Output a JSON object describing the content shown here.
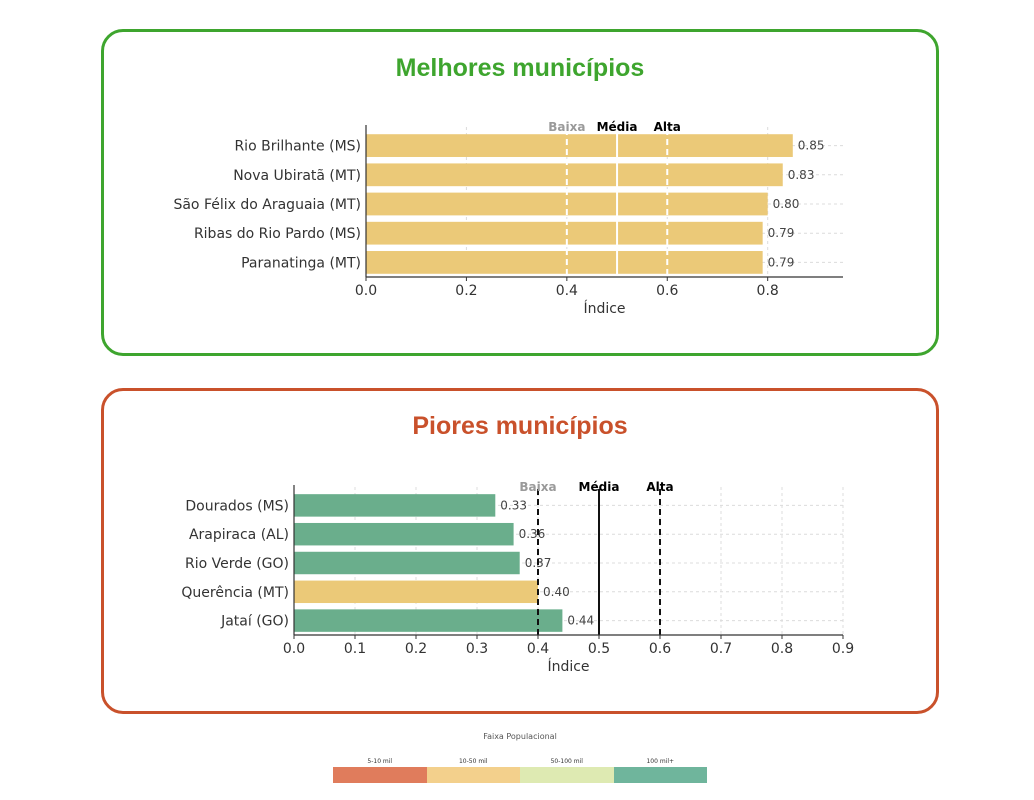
{
  "panels": {
    "best": {
      "title": "Melhores municípios",
      "border_color": "#3ea52e"
    },
    "worst": {
      "title": "Piores municípios",
      "border_color": "#c9512b"
    }
  },
  "chart_data": [
    {
      "type": "bar",
      "orientation": "horizontal",
      "categories": [
        "Rio Brilhante (MS)",
        "Nova Ubiratã (MT)",
        "São Félix do Araguaia (MT)",
        "Ribas do Rio Pardo (MS)",
        "Paranatinga (MT)"
      ],
      "values": [
        0.85,
        0.83,
        0.8,
        0.79,
        0.79
      ],
      "value_labels": [
        "0.85",
        "0.83",
        "0.80",
        "0.79",
        "0.79"
      ],
      "bar_colors": [
        "#ebc978",
        "#ebc978",
        "#ebc978",
        "#ebc978",
        "#ebc978"
      ],
      "xlabel": "Índice",
      "xlim": [
        0,
        0.95
      ],
      "xticks": [
        0.0,
        0.2,
        0.4,
        0.6,
        0.8
      ],
      "xtick_labels": [
        "0.0",
        "0.2",
        "0.4",
        "0.6",
        "0.8"
      ],
      "grid": true,
      "reference_lines": [
        {
          "label": "Baixa",
          "value": 0.4,
          "style": "dashed",
          "color": "#ffffff",
          "label_color": "#9a9a9a"
        },
        {
          "label": "Média",
          "value": 0.5,
          "style": "solid",
          "color": "#ffffff",
          "label_color": "#000000"
        },
        {
          "label": "Alta",
          "value": 0.6,
          "style": "dashed",
          "color": "#ffffff",
          "label_color": "#000000"
        }
      ]
    },
    {
      "type": "bar",
      "orientation": "horizontal",
      "categories": [
        "Dourados (MS)",
        "Arapiraca (AL)",
        "Rio Verde (GO)",
        "Querência (MT)",
        "Jataí (GO)"
      ],
      "values": [
        0.33,
        0.36,
        0.37,
        0.4,
        0.44
      ],
      "value_labels": [
        "0.33",
        "0.36",
        "0.37",
        "0.40",
        "0.44"
      ],
      "bar_colors": [
        "#6aae8c",
        "#6aae8c",
        "#6aae8c",
        "#ebc978",
        "#6aae8c"
      ],
      "xlabel": "Índice",
      "xlim": [
        0,
        0.9
      ],
      "xticks": [
        0.0,
        0.1,
        0.2,
        0.3,
        0.4,
        0.5,
        0.6,
        0.7,
        0.8,
        0.9
      ],
      "xtick_labels": [
        "0.0",
        "0.1",
        "0.2",
        "0.3",
        "0.4",
        "0.5",
        "0.6",
        "0.7",
        "0.8",
        "0.9"
      ],
      "grid": true,
      "reference_lines": [
        {
          "label": "Baixa",
          "value": 0.4,
          "style": "dashed",
          "color": "#111111",
          "label_color": "#9a9a9a"
        },
        {
          "label": "Média",
          "value": 0.5,
          "style": "solid",
          "color": "#111111",
          "label_color": "#000000"
        },
        {
          "label": "Alta",
          "value": 0.6,
          "style": "dashed",
          "color": "#111111",
          "label_color": "#000000"
        }
      ]
    }
  ],
  "legend": {
    "title": "Faixa Populacional",
    "items": [
      {
        "label": "5-10 mil",
        "color": "#e07c5c"
      },
      {
        "label": "10-50 mil",
        "color": "#f3d08c"
      },
      {
        "label": "50-100 mil",
        "color": "#deeab2"
      },
      {
        "label": "100 mil+",
        "color": "#6fb59c"
      }
    ]
  }
}
